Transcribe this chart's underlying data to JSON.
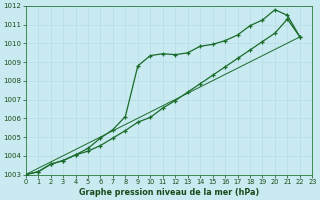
{
  "title": "Graphe pression niveau de la mer (hPa)",
  "background_color": "#c8eaf0",
  "grid_color": "#b8dce6",
  "line_color": "#1a6b2a",
  "x_min": 0,
  "x_max": 23,
  "y_min": 1003,
  "y_max": 1012,
  "x_ticks": [
    0,
    1,
    2,
    3,
    4,
    5,
    6,
    7,
    8,
    9,
    10,
    11,
    12,
    13,
    14,
    15,
    16,
    17,
    18,
    19,
    20,
    21,
    22,
    23
  ],
  "y_ticks": [
    1003,
    1004,
    1005,
    1006,
    1007,
    1008,
    1009,
    1010,
    1011,
    1012
  ],
  "series1_upper": [
    [
      0,
      1003.0
    ],
    [
      1,
      1003.15
    ],
    [
      2,
      1003.55
    ],
    [
      3,
      1003.75
    ],
    [
      4,
      1004.05
    ],
    [
      5,
      1004.4
    ],
    [
      6,
      1004.95
    ],
    [
      7,
      1005.4
    ],
    [
      8,
      1006.1
    ],
    [
      9,
      1008.8
    ],
    [
      10,
      1009.35
    ],
    [
      11,
      1009.45
    ],
    [
      12,
      1009.4
    ],
    [
      13,
      1009.5
    ],
    [
      14,
      1009.85
    ],
    [
      15,
      1009.95
    ],
    [
      16,
      1010.15
    ],
    [
      17,
      1010.45
    ],
    [
      18,
      1010.95
    ],
    [
      19,
      1011.25
    ],
    [
      20,
      1011.8
    ],
    [
      21,
      1011.5
    ],
    [
      22,
      1010.35
    ]
  ],
  "series2_lower": [
    [
      0,
      1003.0
    ],
    [
      1,
      1003.15
    ],
    [
      2,
      1003.55
    ],
    [
      3,
      1003.75
    ],
    [
      4,
      1004.05
    ],
    [
      5,
      1004.25
    ],
    [
      6,
      1004.55
    ],
    [
      7,
      1004.95
    ],
    [
      8,
      1005.35
    ],
    [
      9,
      1005.8
    ],
    [
      10,
      1006.05
    ],
    [
      11,
      1006.55
    ],
    [
      12,
      1006.95
    ],
    [
      13,
      1007.4
    ],
    [
      14,
      1007.85
    ],
    [
      15,
      1008.3
    ],
    [
      16,
      1008.75
    ],
    [
      17,
      1009.2
    ],
    [
      18,
      1009.65
    ],
    [
      19,
      1010.1
    ],
    [
      20,
      1010.55
    ],
    [
      21,
      1011.3
    ],
    [
      22,
      1010.35
    ]
  ],
  "series3_straight": [
    [
      0,
      1003.0
    ],
    [
      22,
      1010.35
    ]
  ]
}
